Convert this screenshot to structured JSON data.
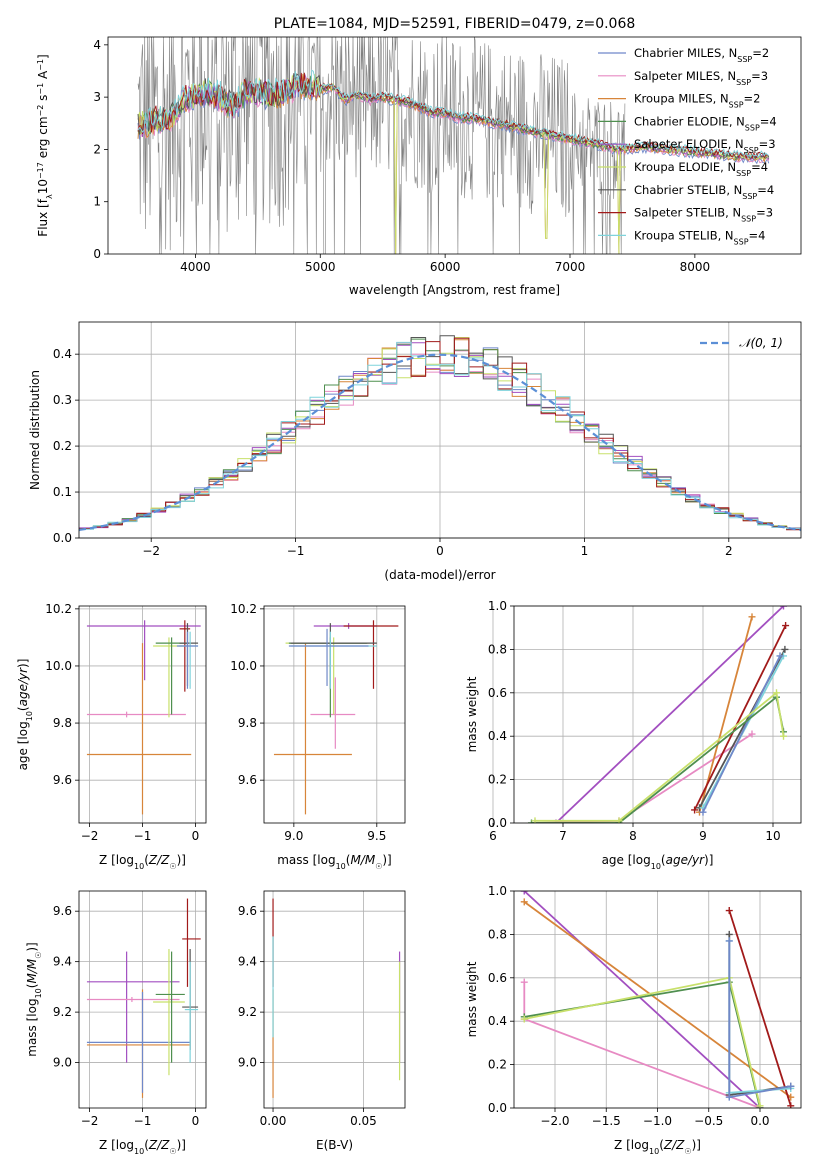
{
  "colors": {
    "chabrier_miles": "#6f88c9",
    "salpeter_miles": "#e78ac3",
    "kroupa_miles": "#d7853a",
    "chabrier_elodie": "#4f8f4f",
    "salpeter_elodie": "#a24fc0",
    "kroupa_elodie": "#c8e06b",
    "chabrier_stelib": "#555555",
    "salpeter_stelib": "#a11a1a",
    "kroupa_stelib": "#7fd3db",
    "data": "#808080",
    "normal": "#5b8fd6"
  },
  "chart_data": [
    {
      "id": "spectrum",
      "type": "line",
      "title": "PLATE=1084, MJD=52591, FIBERID=0479, z=0.068",
      "xlabel": "wavelength [Angstrom, rest frame]",
      "ylabel": "Flux [fλ10⁻¹⁷ erg cm⁻² s⁻¹ A⁻¹]",
      "xlim": [
        3300,
        8850
      ],
      "ylim": [
        0,
        4.15
      ],
      "xticks": [
        "4000",
        "5000",
        "6000",
        "7000",
        "8000"
      ],
      "yticks": [
        "0",
        "1",
        "2",
        "3",
        "4"
      ],
      "legend_position": "top-right",
      "legend": [
        {
          "label": "Chabrier MILES, N",
          "sub": "SSP",
          "tail": "=2",
          "color_key": "chabrier_miles"
        },
        {
          "label": "Salpeter MILES, N",
          "sub": "SSP",
          "tail": "=3",
          "color_key": "salpeter_miles"
        },
        {
          "label": "Kroupa MILES, N",
          "sub": "SSP",
          "tail": "=2",
          "color_key": "kroupa_miles"
        },
        {
          "label": "Chabrier ELODIE, N",
          "sub": "SSP",
          "tail": "=4",
          "color_key": "chabrier_elodie"
        },
        {
          "label": "Salpeter ELODIE, N",
          "sub": "SSP",
          "tail": "=3",
          "color_key": "salpeter_elodie"
        },
        {
          "label": "Kroupa ELODIE, N",
          "sub": "SSP",
          "tail": "=4",
          "color_key": "kroupa_elodie"
        },
        {
          "label": "Chabrier STELIB, N",
          "sub": "SSP",
          "tail": "=4",
          "color_key": "chabrier_stelib"
        },
        {
          "label": "Salpeter STELIB, N",
          "sub": "SSP",
          "tail": "=3",
          "color_key": "salpeter_stelib"
        },
        {
          "label": "Kroupa STELIB, N",
          "sub": "SSP",
          "tail": "=4",
          "color_key": "kroupa_stelib"
        }
      ],
      "continuum": [
        [
          3540,
          2.45
        ],
        [
          3600,
          2.5
        ],
        [
          3700,
          2.55
        ],
        [
          3800,
          2.6
        ],
        [
          3900,
          2.95
        ],
        [
          4000,
          3.0
        ],
        [
          4100,
          3.1
        ],
        [
          4200,
          3.0
        ],
        [
          4300,
          2.8
        ],
        [
          4400,
          3.1
        ],
        [
          4500,
          3.1
        ],
        [
          4600,
          3.05
        ],
        [
          4700,
          3.05
        ],
        [
          4800,
          3.2
        ],
        [
          4900,
          3.25
        ],
        [
          5000,
          3.15
        ],
        [
          5100,
          3.2
        ],
        [
          5200,
          2.95
        ],
        [
          5300,
          3.05
        ],
        [
          5400,
          2.95
        ],
        [
          5500,
          3.0
        ],
        [
          5600,
          2.95
        ],
        [
          5700,
          2.9
        ],
        [
          5800,
          2.8
        ],
        [
          5900,
          2.7
        ],
        [
          6000,
          2.7
        ],
        [
          6100,
          2.6
        ],
        [
          6200,
          2.6
        ],
        [
          6300,
          2.55
        ],
        [
          6400,
          2.5
        ],
        [
          6500,
          2.45
        ],
        [
          6600,
          2.4
        ],
        [
          6700,
          2.35
        ],
        [
          6800,
          2.3
        ],
        [
          6900,
          2.25
        ],
        [
          7000,
          2.2
        ],
        [
          7100,
          2.15
        ],
        [
          7200,
          2.1
        ],
        [
          7300,
          2.05
        ],
        [
          7400,
          2.0
        ],
        [
          7600,
          2.05
        ],
        [
          7800,
          2.0
        ],
        [
          8000,
          1.95
        ],
        [
          8200,
          1.9
        ],
        [
          8400,
          1.85
        ],
        [
          8600,
          1.85
        ]
      ],
      "data_end_x": 7440,
      "model_deep_dips": [
        {
          "x": 5605,
          "y": 0.0
        },
        {
          "x": 7390,
          "y": 0.0
        },
        {
          "x": 6810,
          "y": 0.3
        }
      ]
    },
    {
      "id": "residuals",
      "type": "line",
      "xlabel": "(data-model)/error",
      "ylabel": "Normed distribution",
      "xlim": [
        -2.5,
        2.5
      ],
      "ylim": [
        0,
        0.47
      ],
      "xticks": [
        "−2",
        "−1",
        "0",
        "1",
        "2"
      ],
      "yticks": [
        "0.0",
        "0.1",
        "0.2",
        "0.3",
        "0.4"
      ],
      "legend_position": "top-right",
      "legend_label": "𝒩(0, 1)",
      "series": [
        {
          "name": "𝒩(0, 1)",
          "mean": 0,
          "sigma": 1
        }
      ],
      "bin_width": 0.1
    },
    {
      "id": "age_vs_Z",
      "type": "scatter",
      "xlabel": "Z [log10(Z/Z☉)]",
      "ylabel": "age [log10(age/yr)]",
      "xlim": [
        -2.2,
        0.2
      ],
      "ylim": [
        9.45,
        10.21
      ],
      "xticks": [
        "−2",
        "−1",
        "0"
      ],
      "yticks": [
        "9.6",
        "9.8",
        "10.0",
        "10.2"
      ],
      "points": [
        {
          "c": "salpeter_elodie",
          "x": -0.96,
          "y": 10.14,
          "x0": -2.05,
          "x1": 0.1,
          "y0": 9.95,
          "y1": 10.16
        },
        {
          "c": "salpeter_miles",
          "x": -1.3,
          "y": 9.83,
          "x0": -2.05,
          "x1": -0.18,
          "y0": 9.82,
          "y1": 9.84
        },
        {
          "c": "kroupa_miles",
          "x": -1.0,
          "y": 9.69,
          "x0": -2.05,
          "x1": -0.08,
          "y0": 9.48,
          "y1": 10.08
        },
        {
          "c": "kroupa_elodie",
          "x": -0.5,
          "y": 10.07,
          "x0": -0.8,
          "x1": -0.2,
          "y0": 9.82,
          "y1": 10.1
        },
        {
          "c": "chabrier_elodie",
          "x": -0.45,
          "y": 10.08,
          "x0": -0.75,
          "x1": -0.15,
          "y0": 9.83,
          "y1": 10.1
        },
        {
          "c": "salpeter_stelib",
          "x": -0.2,
          "y": 10.13,
          "x0": -0.3,
          "x1": -0.1,
          "y0": 9.91,
          "y1": 10.16
        },
        {
          "c": "chabrier_stelib",
          "x": -0.15,
          "y": 10.08,
          "x0": -0.3,
          "x1": 0.05,
          "y0": 9.93,
          "y1": 10.15
        },
        {
          "c": "kroupa_stelib",
          "x": -0.1,
          "y": 10.07,
          "x0": -0.3,
          "x1": 0.05,
          "y0": 9.92,
          "y1": 10.12
        },
        {
          "c": "chabrier_miles",
          "x": -0.15,
          "y": 10.07,
          "x0": -0.35,
          "x1": 0.05,
          "y0": 9.92,
          "y1": 10.12
        }
      ]
    },
    {
      "id": "age_vs_mass",
      "type": "scatter",
      "xlabel": "mass [log10(M/M☉)]",
      "ylabel": "",
      "xlim": [
        8.82,
        9.67
      ],
      "ylim": [
        9.45,
        10.21
      ],
      "xticks": [
        "9.0",
        "9.5"
      ],
      "yticks": [
        "9.6",
        "9.8",
        "10.0",
        "10.2"
      ],
      "points": [
        {
          "c": "salpeter_elodie",
          "x": 9.33,
          "y": 10.14,
          "x0": 9.12,
          "x1": 9.5,
          "y0": 10.13,
          "y1": 10.15
        },
        {
          "c": "salpeter_stelib",
          "x": 9.48,
          "y": 10.14,
          "x0": 9.3,
          "x1": 9.63,
          "y0": 9.92,
          "y1": 10.16
        },
        {
          "c": "salpeter_miles",
          "x": 9.25,
          "y": 9.83,
          "x0": 9.1,
          "x1": 9.37,
          "y0": 9.71,
          "y1": 9.96
        },
        {
          "c": "kroupa_miles",
          "x": 9.07,
          "y": 9.69,
          "x0": 8.88,
          "x1": 9.35,
          "y0": 9.48,
          "y1": 10.08
        },
        {
          "c": "kroupa_elodie",
          "x": 9.24,
          "y": 10.08,
          "x0": 8.95,
          "x1": 9.45,
          "y0": 9.83,
          "y1": 10.1
        },
        {
          "c": "chabrier_elodie",
          "x": 9.22,
          "y": 10.08,
          "x0": 8.97,
          "x1": 9.44,
          "y0": 9.82,
          "y1": 10.1
        },
        {
          "c": "chabrier_stelib",
          "x": 9.22,
          "y": 10.08,
          "x0": 8.98,
          "x1": 9.5,
          "y0": 9.92,
          "y1": 10.15
        },
        {
          "c": "kroupa_stelib",
          "x": 9.22,
          "y": 10.07,
          "x0": 8.98,
          "x1": 9.5,
          "y0": 9.92,
          "y1": 10.12
        },
        {
          "c": "chabrier_miles",
          "x": 9.2,
          "y": 10.07,
          "x0": 8.97,
          "x1": 9.45,
          "y0": 9.93,
          "y1": 10.13
        }
      ]
    },
    {
      "id": "massweight_vs_age",
      "type": "line",
      "xlabel": "age [log10(age/yr)]",
      "ylabel": "mass weight",
      "xlim": [
        6.3,
        10.4
      ],
      "ylim": [
        0,
        1.0
      ],
      "xticks": [
        "6",
        "7",
        "8",
        "9",
        "10"
      ],
      "yticks": [
        "0.0",
        "0.2",
        "0.4",
        "0.6",
        "0.8",
        "1.0"
      ],
      "series": [
        {
          "c": "salpeter_elodie",
          "points": [
            [
              6.9,
              0.0
            ],
            [
              10.15,
              1.0
            ]
          ]
        },
        {
          "c": "salpeter_miles",
          "points": [
            [
              6.6,
              0.0
            ],
            [
              7.8,
              0.01
            ],
            [
              9.7,
              0.41
            ]
          ]
        },
        {
          "c": "kroupa_miles",
          "points": [
            [
              8.95,
              0.05
            ],
            [
              9.7,
              0.95
            ]
          ]
        },
        {
          "c": "salpeter_stelib",
          "points": [
            [
              8.88,
              0.06
            ],
            [
              10.18,
              0.91
            ]
          ]
        },
        {
          "c": "chabrier_stelib",
          "points": [
            [
              8.95,
              0.07
            ],
            [
              10.17,
              0.8
            ]
          ]
        },
        {
          "c": "kroupa_stelib",
          "points": [
            [
              9.0,
              0.07
            ],
            [
              10.15,
              0.77
            ]
          ]
        },
        {
          "c": "chabrier_miles",
          "points": [
            [
              9.0,
              0.05
            ],
            [
              10.1,
              0.77
            ]
          ]
        },
        {
          "c": "chabrier_elodie",
          "points": [
            [
              6.55,
              0.0
            ],
            [
              7.8,
              0.0
            ],
            [
              10.05,
              0.58
            ],
            [
              10.15,
              0.42
            ]
          ]
        },
        {
          "c": "kroupa_elodie",
          "points": [
            [
              6.6,
              0.01
            ],
            [
              7.8,
              0.01
            ],
            [
              10.05,
              0.6
            ],
            [
              10.15,
              0.4
            ]
          ]
        }
      ]
    },
    {
      "id": "mass_vs_Z",
      "type": "scatter",
      "xlabel": "Z [log10(Z/Z☉)]",
      "ylabel": "mass [log10(M/M☉)]",
      "xlim": [
        -2.2,
        0.2
      ],
      "ylim": [
        8.82,
        9.68
      ],
      "xticks": [
        "−2",
        "−1",
        "0"
      ],
      "yticks": [
        "9.0",
        "9.2",
        "9.4",
        "9.6"
      ],
      "points": [
        {
          "c": "salpeter_elodie",
          "x": -1.3,
          "y": 9.32,
          "x0": -2.05,
          "x1": -0.3,
          "y0": 9.0,
          "y1": 9.44
        },
        {
          "c": "salpeter_miles",
          "x": -1.2,
          "y": 9.25,
          "x0": -2.05,
          "x1": -0.3,
          "y0": 9.24,
          "y1": 9.26
        },
        {
          "c": "kroupa_miles",
          "x": -1.0,
          "y": 9.07,
          "x0": -2.05,
          "x1": -0.1,
          "y0": 8.86,
          "y1": 9.29
        },
        {
          "c": "chabrier_miles",
          "x": -1.0,
          "y": 9.08,
          "x0": -2.05,
          "x1": -0.1,
          "y0": 8.88,
          "y1": 9.28
        },
        {
          "c": "kroupa_elodie",
          "x": -0.5,
          "y": 9.24,
          "x0": -0.8,
          "x1": -0.2,
          "y0": 8.95,
          "y1": 9.45
        },
        {
          "c": "chabrier_elodie",
          "x": -0.45,
          "y": 9.27,
          "x0": -0.75,
          "x1": -0.2,
          "y0": 9.0,
          "y1": 9.44
        },
        {
          "c": "salpeter_stelib",
          "x": -0.15,
          "y": 9.49,
          "x0": -0.25,
          "x1": 0.1,
          "y0": 9.3,
          "y1": 9.65
        },
        {
          "c": "chabrier_stelib",
          "x": -0.1,
          "y": 9.22,
          "x0": -0.25,
          "x1": 0.05,
          "y0": 9.05,
          "y1": 9.45
        },
        {
          "c": "kroupa_stelib",
          "x": -0.1,
          "y": 9.21,
          "x0": -0.2,
          "x1": 0.05,
          "y0": 9.0,
          "y1": 9.4
        }
      ]
    },
    {
      "id": "mass_vs_ebv",
      "type": "scatter",
      "xlabel": "E(B-V)",
      "ylabel": "",
      "xlim": [
        -0.005,
        0.073
      ],
      "ylim": [
        8.82,
        9.68
      ],
      "xticks": [
        "0.00",
        "0.05"
      ],
      "yticks": [
        "9.0",
        "9.2",
        "9.4",
        "9.6"
      ],
      "points": [
        {
          "c": "salpeter_stelib",
          "x": 0.0,
          "y": 9.49,
          "y0": 9.3,
          "y1": 9.65
        },
        {
          "c": "kroupa_miles",
          "x": 0.0,
          "y": 9.07,
          "y0": 8.86,
          "y1": 9.29
        },
        {
          "c": "kroupa_stelib",
          "x": 0.0,
          "y": 9.22,
          "y0": 9.1,
          "y1": 9.5
        },
        {
          "c": "salpeter_elodie",
          "x": 0.07,
          "y": 9.32,
          "y0": 9.0,
          "y1": 9.44
        },
        {
          "c": "kroupa_elodie",
          "x": 0.07,
          "y": 9.24,
          "y0": 8.93,
          "y1": 9.4
        }
      ]
    },
    {
      "id": "massweight_vs_Z",
      "type": "line",
      "xlabel": "Z [log10(Z/Z☉)]",
      "ylabel": "mass weight",
      "xlim": [
        -2.4,
        0.4
      ],
      "ylim": [
        0,
        1.0
      ],
      "xticks": [
        "−2.0",
        "−1.5",
        "−1.0",
        "−0.5",
        "0.0"
      ],
      "yticks": [
        "0.0",
        "0.2",
        "0.4",
        "0.6",
        "0.8",
        "1.0"
      ],
      "series": [
        {
          "c": "salpeter_elodie",
          "points": [
            [
              -2.3,
              1.0
            ],
            [
              0.0,
              0.0
            ]
          ]
        },
        {
          "c": "kroupa_miles",
          "points": [
            [
              -2.3,
              0.95
            ],
            [
              0.3,
              0.05
            ]
          ]
        },
        {
          "c": "salpeter_miles",
          "points": [
            [
              -2.3,
              0.58
            ],
            [
              -2.3,
              0.41
            ],
            [
              0.0,
              0.0
            ]
          ]
        },
        {
          "c": "chabrier_elodie",
          "points": [
            [
              -2.3,
              0.42
            ],
            [
              -0.3,
              0.58
            ],
            [
              0.0,
              0.0
            ]
          ]
        },
        {
          "c": "kroupa_elodie",
          "points": [
            [
              -2.3,
              0.41
            ],
            [
              -0.3,
              0.6
            ],
            [
              0.0,
              0.01
            ]
          ]
        },
        {
          "c": "salpeter_stelib",
          "points": [
            [
              -0.3,
              0.91
            ],
            [
              0.3,
              0.01
            ]
          ]
        },
        {
          "c": "chabrier_stelib",
          "points": [
            [
              -0.3,
              0.8
            ],
            [
              -0.3,
              0.06
            ],
            [
              0.3,
              0.1
            ]
          ]
        },
        {
          "c": "kroupa_stelib",
          "points": [
            [
              -0.3,
              0.77
            ],
            [
              -0.3,
              0.07
            ],
            [
              0.3,
              0.09
            ]
          ]
        },
        {
          "c": "chabrier_miles",
          "points": [
            [
              -0.3,
              0.77
            ],
            [
              -0.3,
              0.05
            ],
            [
              0.3,
              0.1
            ]
          ]
        }
      ]
    }
  ]
}
